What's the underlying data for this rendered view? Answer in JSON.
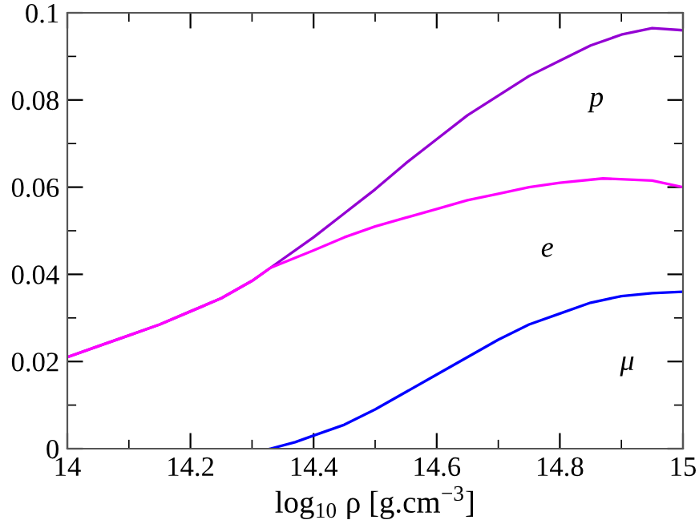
{
  "chart_data": {
    "type": "line",
    "xlabel": "log$_{10}$ ρ [g.cm$^{−3}$]",
    "xlim": [
      14,
      15
    ],
    "ylim": [
      0,
      0.1
    ],
    "xticks": [
      14,
      {
        "value": 14.1,
        "label": null
      },
      14.2,
      {
        "value": 14.3,
        "label": null
      },
      14.4,
      {
        "value": 14.5,
        "label": null
      },
      14.6,
      {
        "value": 14.7,
        "label": null
      },
      14.8,
      {
        "value": 14.9,
        "label": null
      },
      15
    ],
    "yticks": [
      0,
      {
        "value": 0.01,
        "label": null
      },
      0.02,
      {
        "value": 0.03,
        "label": null
      },
      0.04,
      {
        "value": 0.05,
        "label": null
      },
      0.06,
      {
        "value": 0.07,
        "label": null
      },
      0.08,
      {
        "value": 0.09,
        "label": null
      },
      0.1
    ],
    "grid": false,
    "legend": false,
    "marker": "none",
    "line_style": "solid",
    "series": [
      {
        "name": "p",
        "color": "#9400d3",
        "x": [
          14.0,
          14.05,
          14.1,
          14.15,
          14.2,
          14.25,
          14.3,
          14.33,
          14.4,
          14.45,
          14.5,
          14.55,
          14.6,
          14.65,
          14.7,
          14.75,
          14.8,
          14.85,
          14.9,
          14.95,
          15.0
        ],
        "values": [
          0.021,
          0.0235,
          0.026,
          0.0285,
          0.0315,
          0.0345,
          0.0385,
          0.0415,
          0.0485,
          0.054,
          0.0595,
          0.0655,
          0.071,
          0.0765,
          0.081,
          0.0855,
          0.089,
          0.0925,
          0.095,
          0.0965,
          0.096
        ]
      },
      {
        "name": "e",
        "color": "#ff00ff",
        "x": [
          14.0,
          14.05,
          14.1,
          14.15,
          14.2,
          14.25,
          14.3,
          14.33,
          14.4,
          14.45,
          14.5,
          14.55,
          14.6,
          14.65,
          14.7,
          14.75,
          14.8,
          14.87,
          14.95,
          15.0
        ],
        "values": [
          0.021,
          0.0235,
          0.026,
          0.0285,
          0.0315,
          0.0345,
          0.0385,
          0.0415,
          0.0455,
          0.0485,
          0.051,
          0.053,
          0.055,
          0.057,
          0.0585,
          0.06,
          0.061,
          0.062,
          0.0615,
          0.06
        ]
      },
      {
        "name": "μ",
        "color": "#0000ff",
        "x": [
          14.33,
          14.37,
          14.4,
          14.45,
          14.5,
          14.55,
          14.6,
          14.65,
          14.7,
          14.75,
          14.8,
          14.85,
          14.9,
          14.95,
          15.0
        ],
        "values": [
          0.0,
          0.0015,
          0.003,
          0.0055,
          0.009,
          0.013,
          0.017,
          0.021,
          0.025,
          0.0285,
          0.031,
          0.0335,
          0.035,
          0.0357,
          0.036
        ]
      }
    ]
  }
}
